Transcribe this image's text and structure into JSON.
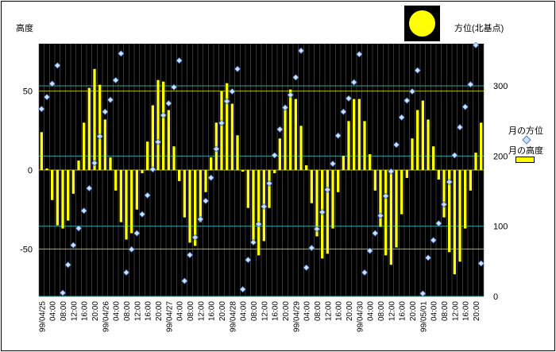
{
  "labels": {
    "left_axis_title": "高度",
    "right_axis_title": "方位(北基点)",
    "legend_azimuth": "月の方位",
    "legend_altitude": "月の高度"
  },
  "colors": {
    "plot_bg": "#000000",
    "bar": "#ffff00",
    "diamond_fill": "#cfe0ff",
    "diamond_edge": "#4a7cc8",
    "vgrid": "#5a5a5a",
    "hgrid_left": "#b8b800",
    "hgrid_right": "#2aa0a0"
  },
  "moon_icon": "full-moon-icon",
  "chart_data": {
    "type": "bar+scatter",
    "x_tick_labels": [
      "99/04/25",
      "04:00",
      "08:00",
      "12:00",
      "16:00",
      "20:00",
      "99/04/26",
      "04:00",
      "08:00",
      "12:00",
      "16:00",
      "20:00",
      "99/04/27",
      "04:00",
      "08:00",
      "12:00",
      "16:00",
      "20:00",
      "99/04/28",
      "04:00",
      "08:00",
      "12:00",
      "16:00",
      "20:00",
      "99/04/29",
      "04:00",
      "08:00",
      "12:00",
      "16:00",
      "20:00",
      "99/04/30",
      "04:00",
      "08:00",
      "12:00",
      "16:00",
      "20:00",
      "99/05/01",
      "04:00",
      "08:00",
      "12:00",
      "16:00",
      "20:00"
    ],
    "hours_per_step": 2,
    "left_axis": {
      "min": -80,
      "max": 80,
      "ticks": [
        -50,
        0,
        50
      ]
    },
    "right_axis": {
      "min": 0,
      "max": 360,
      "ticks": [
        0,
        100,
        200,
        300
      ]
    },
    "series": [
      {
        "name": "月の高度",
        "type": "bar",
        "axis": "left",
        "values": [
          24,
          1,
          -19,
          -35,
          -37,
          -32,
          -15,
          6,
          30,
          52,
          64,
          54,
          32,
          8,
          -13,
          -33,
          -44,
          -40,
          -25,
          -2,
          18,
          41,
          57,
          56,
          38,
          15,
          -7,
          -30,
          -46,
          -48,
          -33,
          -14,
          8,
          30,
          50,
          55,
          42,
          22,
          -1,
          -24,
          -45,
          -54,
          -45,
          -24,
          -2,
          20,
          40,
          51,
          45,
          28,
          3,
          -21,
          -42,
          -56,
          -53,
          -37,
          -14,
          9,
          31,
          45,
          45,
          31,
          10,
          -13,
          -36,
          -54,
          -60,
          -49,
          -28,
          -5,
          20,
          38,
          44,
          32,
          15,
          -6,
          -30,
          -52,
          -66,
          -58,
          -37,
          -13,
          11,
          30
        ]
      },
      {
        "name": "月の方位",
        "type": "scatter",
        "axis": "right",
        "values": [
          267,
          284,
          303,
          329,
          5,
          45,
          73,
          97,
          122,
          154,
          190,
          228,
          263,
          280,
          308,
          346,
          34,
          67,
          90,
          117,
          144,
          181,
          220,
          258,
          275,
          298,
          336,
          22,
          59,
          84,
          110,
          136,
          169,
          210,
          247,
          278,
          292,
          324,
          10,
          52,
          77,
          103,
          128,
          161,
          201,
          238,
          269,
          287,
          312,
          350,
          41,
          69,
          96,
          120,
          152,
          189,
          229,
          263,
          282,
          305,
          345,
          34,
          65,
          90,
          115,
          143,
          178,
          216,
          255,
          279,
          292,
          322,
          4,
          55,
          80,
          104,
          131,
          163,
          201,
          241,
          270,
          302,
          358,
          47
        ]
      }
    ]
  }
}
